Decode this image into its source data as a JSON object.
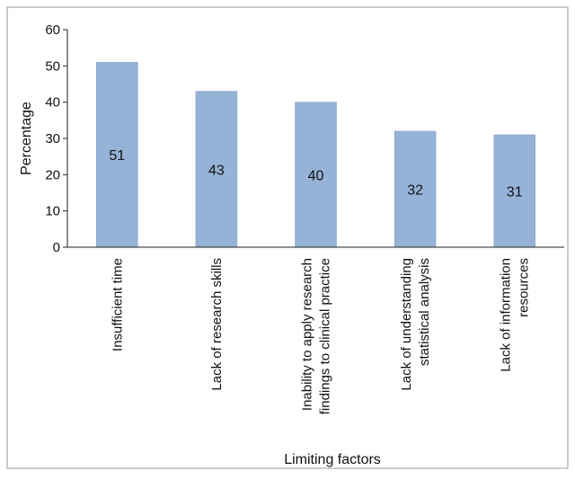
{
  "chart_data": {
    "type": "bar",
    "xlabel": "Limiting factors",
    "ylabel": "Percentage",
    "ylim": [
      0,
      60
    ],
    "yticks": [
      "0",
      "10",
      "20",
      "30",
      "40",
      "50",
      "60"
    ],
    "grid": false,
    "legend": "none",
    "categories": [
      [
        "Insufficient time"
      ],
      [
        "Lack of research skills"
      ],
      [
        "Inability to apply research",
        "findings to clinical practice"
      ],
      [
        "Lack of understanding",
        "statistical analysis"
      ],
      [
        "Lack of information",
        "resources"
      ]
    ],
    "values": [
      51,
      43,
      40,
      32,
      31
    ],
    "data_labels": [
      "51",
      "43",
      "40",
      "32",
      "31"
    ],
    "bar_color": "#95b3d7",
    "bar_edge_color": "#7f9fc7",
    "axis_color": "#222222",
    "frame_color": "#9a9a9a"
  }
}
